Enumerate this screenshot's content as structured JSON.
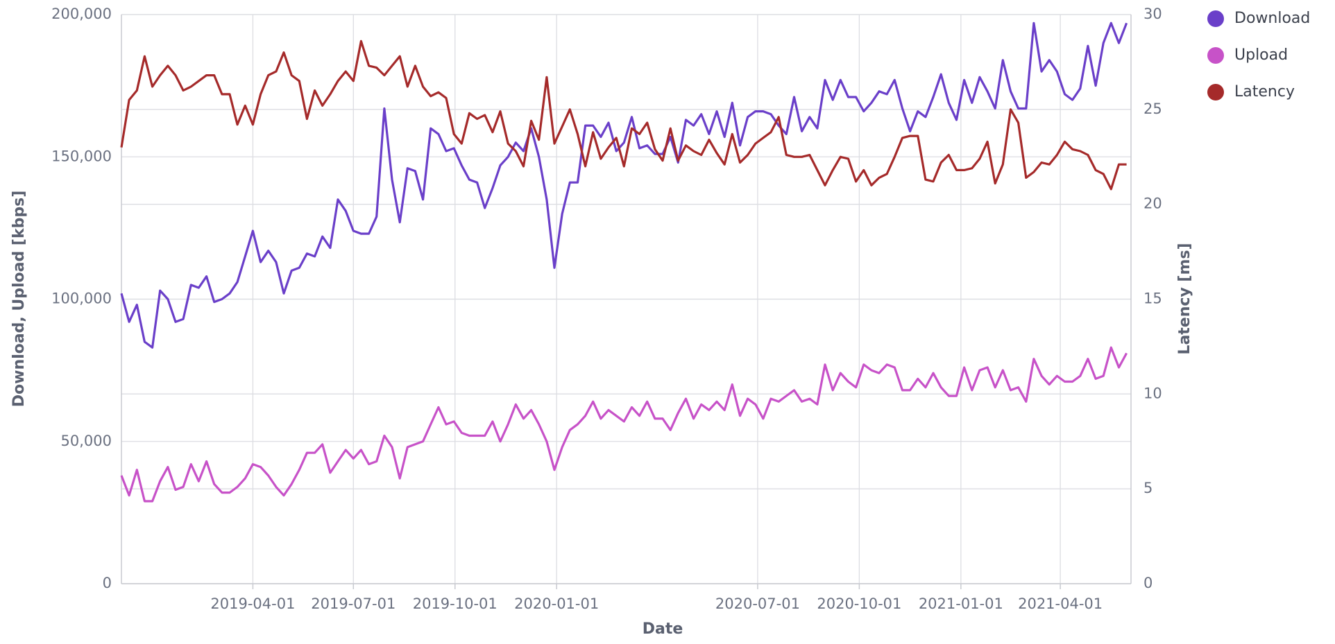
{
  "chart_data": {
    "type": "line",
    "x_label": "Date",
    "y_label": "Download, Upload [kbps]",
    "y2_label": "Latency [ms]",
    "x": [
      "2018-12-03",
      "2018-12-10",
      "2018-12-17",
      "2018-12-24",
      "2018-12-31",
      "2019-01-07",
      "2019-01-14",
      "2019-01-21",
      "2019-01-28",
      "2019-02-04",
      "2019-02-11",
      "2019-02-18",
      "2019-02-25",
      "2019-03-04",
      "2019-03-11",
      "2019-03-18",
      "2019-03-25",
      "2019-04-01",
      "2019-04-08",
      "2019-04-15",
      "2019-04-22",
      "2019-04-29",
      "2019-05-06",
      "2019-05-13",
      "2019-05-20",
      "2019-05-27",
      "2019-06-03",
      "2019-06-10",
      "2019-06-17",
      "2019-06-24",
      "2019-07-01",
      "2019-07-08",
      "2019-07-15",
      "2019-07-22",
      "2019-07-29",
      "2019-08-05",
      "2019-08-12",
      "2019-08-19",
      "2019-08-26",
      "2019-09-02",
      "2019-09-09",
      "2019-09-16",
      "2019-09-23",
      "2019-09-30",
      "2019-10-07",
      "2019-10-14",
      "2019-10-21",
      "2019-10-28",
      "2019-11-04",
      "2019-11-11",
      "2019-11-18",
      "2019-11-25",
      "2019-12-02",
      "2019-12-09",
      "2019-12-16",
      "2019-12-23",
      "2019-12-30",
      "2020-01-06",
      "2020-01-13",
      "2020-01-20",
      "2020-01-27",
      "2020-02-03",
      "2020-02-10",
      "2020-02-17",
      "2020-02-24",
      "2020-03-02",
      "2020-03-09",
      "2020-03-16",
      "2020-03-23",
      "2020-03-30",
      "2020-04-06",
      "2020-04-13",
      "2020-04-20",
      "2020-04-27",
      "2020-05-04",
      "2020-05-11",
      "2020-05-18",
      "2020-05-25",
      "2020-06-01",
      "2020-06-08",
      "2020-06-15",
      "2020-06-22",
      "2020-06-29",
      "2020-07-06",
      "2020-07-13",
      "2020-07-20",
      "2020-07-27",
      "2020-08-03",
      "2020-08-10",
      "2020-08-17",
      "2020-08-24",
      "2020-08-31",
      "2020-09-07",
      "2020-09-14",
      "2020-09-21",
      "2020-09-28",
      "2020-10-05",
      "2020-10-12",
      "2020-10-19",
      "2020-10-26",
      "2020-11-02",
      "2020-11-09",
      "2020-11-16",
      "2020-11-23",
      "2020-11-30",
      "2020-12-07",
      "2020-12-14",
      "2020-12-21",
      "2020-12-28",
      "2021-01-04",
      "2021-01-11",
      "2021-01-18",
      "2021-01-25",
      "2021-02-01",
      "2021-02-08",
      "2021-02-15",
      "2021-02-22",
      "2021-03-01",
      "2021-03-08",
      "2021-03-15",
      "2021-03-22",
      "2021-03-29",
      "2021-04-05",
      "2021-04-12",
      "2021-04-19",
      "2021-04-26",
      "2021-05-03",
      "2021-05-10",
      "2021-05-17",
      "2021-05-24",
      "2021-05-31"
    ],
    "series": [
      {
        "name": "Download",
        "color": "#6a3fc9",
        "axis": "y",
        "values": [
          102000,
          92000,
          98000,
          85000,
          83000,
          103000,
          100000,
          92000,
          93000,
          105000,
          104000,
          108000,
          99000,
          100000,
          102000,
          106000,
          115000,
          124000,
          113000,
          117000,
          113000,
          102000,
          110000,
          111000,
          116000,
          115000,
          122000,
          118000,
          135000,
          131000,
          124000,
          123000,
          123000,
          129000,
          167000,
          142000,
          127000,
          146000,
          145000,
          135000,
          160000,
          158000,
          152000,
          153000,
          147000,
          142000,
          141000,
          132000,
          139000,
          147000,
          150000,
          155000,
          152000,
          160000,
          150000,
          135000,
          111000,
          130000,
          141000,
          141000,
          161000,
          161000,
          157000,
          162000,
          152000,
          155000,
          164000,
          153000,
          154000,
          151000,
          151000,
          157000,
          148000,
          163000,
          161000,
          165000,
          158000,
          166000,
          157000,
          169000,
          154000,
          164000,
          166000,
          166000,
          165000,
          161000,
          158000,
          171000,
          159000,
          164000,
          160000,
          177000,
          170000,
          177000,
          171000,
          171000,
          166000,
          169000,
          173000,
          172000,
          177000,
          167000,
          159000,
          166000,
          164000,
          171000,
          179000,
          169000,
          163000,
          177000,
          169000,
          178000,
          173000,
          167000,
          184000,
          173000,
          167000,
          167000,
          197000,
          180000,
          184000,
          180000,
          172000,
          170000,
          174000,
          189000,
          175000,
          190000,
          197000,
          190000,
          197000
        ]
      },
      {
        "name": "Upload",
        "color": "#c752c8",
        "axis": "y",
        "values": [
          38000,
          31000,
          40000,
          29000,
          29000,
          36000,
          41000,
          33000,
          34000,
          42000,
          36000,
          43000,
          35000,
          32000,
          32000,
          34000,
          37000,
          42000,
          41000,
          38000,
          34000,
          31000,
          35000,
          40000,
          46000,
          46000,
          49000,
          39000,
          43000,
          47000,
          44000,
          47000,
          42000,
          43000,
          52000,
          48000,
          37000,
          48000,
          49000,
          50000,
          56000,
          62000,
          56000,
          57000,
          53000,
          52000,
          52000,
          52000,
          57000,
          50000,
          56000,
          63000,
          58000,
          61000,
          56000,
          50000,
          40000,
          48000,
          54000,
          56000,
          59000,
          64000,
          58000,
          61000,
          59000,
          57000,
          62000,
          59000,
          64000,
          58000,
          58000,
          54000,
          60000,
          65000,
          58000,
          63000,
          61000,
          64000,
          61000,
          70000,
          59000,
          65000,
          63000,
          58000,
          65000,
          64000,
          66000,
          68000,
          64000,
          65000,
          63000,
          77000,
          68000,
          74000,
          71000,
          69000,
          77000,
          75000,
          74000,
          77000,
          76000,
          68000,
          68000,
          72000,
          69000,
          74000,
          69000,
          66000,
          66000,
          76000,
          68000,
          75000,
          76000,
          69000,
          75000,
          68000,
          69000,
          64000,
          79000,
          73000,
          70000,
          73000,
          71000,
          71000,
          73000,
          79000,
          72000,
          73000,
          83000,
          76000,
          81000
        ]
      },
      {
        "name": "Latency",
        "color": "#a52a2a",
        "axis": "y2",
        "values": [
          23,
          25.5,
          26,
          27.8,
          26.2,
          26.8,
          27.3,
          26.8,
          26,
          26.2,
          26.5,
          26.8,
          26.8,
          25.8,
          25.8,
          24.2,
          25.2,
          24.2,
          25.8,
          26.8,
          27,
          28,
          26.8,
          26.5,
          24.5,
          26,
          25.2,
          25.8,
          26.5,
          27,
          26.5,
          28.6,
          27.3,
          27.2,
          26.8,
          27.3,
          27.8,
          26.2,
          27.3,
          26.2,
          25.7,
          25.9,
          25.6,
          23.7,
          23.2,
          24.8,
          24.5,
          24.7,
          23.8,
          24.9,
          23.2,
          22.8,
          22,
          24.4,
          23.4,
          26.7,
          23.2,
          24.1,
          25,
          23.7,
          22,
          23.8,
          22.4,
          23,
          23.5,
          22,
          24,
          23.7,
          24.3,
          22.9,
          22.3,
          24,
          22.3,
          23.1,
          22.8,
          22.6,
          23.4,
          22.7,
          22.1,
          23.7,
          22.2,
          22.6,
          23.2,
          23.5,
          23.8,
          24.6,
          22.6,
          22.5,
          22.5,
          22.6,
          21.8,
          21,
          21.8,
          22.5,
          22.4,
          21.2,
          21.8,
          21,
          21.4,
          21.6,
          22.5,
          23.5,
          23.6,
          23.6,
          21.3,
          21.2,
          22.2,
          22.6,
          21.8,
          21.8,
          21.9,
          22.4,
          23.3,
          21.1,
          22.1,
          25,
          24.3,
          21.4,
          21.7,
          22.2,
          22.1,
          22.6,
          23.3,
          22.9,
          22.8,
          22.6,
          21.8,
          21.6,
          20.8,
          22.1,
          22.1
        ]
      }
    ],
    "xlim": [
      "2018-12-03",
      "2021-06-04"
    ],
    "xticks": [
      "2019-04-01",
      "2019-07-01",
      "2019-10-01",
      "2020-01-01",
      "2020-07-01",
      "2020-10-01",
      "2021-01-01",
      "2021-04-01"
    ],
    "ylim": [
      0,
      200000
    ],
    "yticks": [
      0,
      {
        "value": 50000,
        "label": "50,000"
      },
      {
        "value": 100000,
        "label": "100,000"
      },
      {
        "value": 150000,
        "label": "150,000"
      },
      {
        "value": 200000,
        "label": "200,000"
      }
    ],
    "y2lim": [
      0,
      30
    ],
    "y2ticks": [
      0,
      5,
      10,
      15,
      20,
      25,
      30
    ],
    "grid": true,
    "legend": "right"
  }
}
